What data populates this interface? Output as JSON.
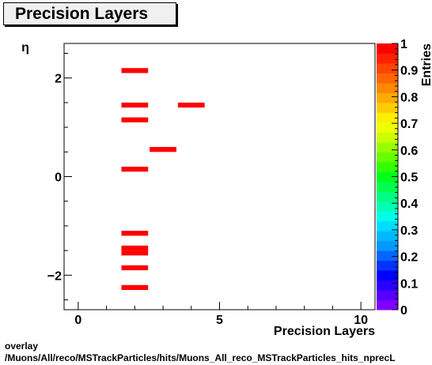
{
  "title_box": {
    "text": "Precision Layers"
  },
  "footer": {
    "line1": "overlay",
    "line2": "/Muons/All/reco/MSTrackParticles/hits/Muons_All_reco_MSTrackParticles_hits_nprecL"
  },
  "chart_data": {
    "type": "heatmap",
    "title": "Precision Layers",
    "xlabel": "Precision Layers",
    "ylabel": "η",
    "xlim": [
      -0.5,
      10.5
    ],
    "ylim": [
      -2.7,
      2.7
    ],
    "x_ticks": [
      0,
      5,
      10
    ],
    "y_ticks": [
      -2,
      0,
      2
    ],
    "zlabel": "Entries",
    "zlim": [
      0,
      1
    ],
    "z_ticks": [
      "0",
      "0.1",
      "0.2",
      "0.3",
      "0.4",
      "0.5",
      "0.6",
      "0.7",
      "0.8",
      "0.9",
      "1"
    ],
    "bin_color": "#ff0000",
    "cells": [
      {
        "x": [
          1.5,
          2.5
        ],
        "y": [
          2.1,
          2.2
        ],
        "z": 1
      },
      {
        "x": [
          1.5,
          2.5
        ],
        "y": [
          1.4,
          1.5
        ],
        "z": 1
      },
      {
        "x": [
          3.5,
          4.5
        ],
        "y": [
          1.4,
          1.5
        ],
        "z": 1
      },
      {
        "x": [
          1.5,
          2.5
        ],
        "y": [
          1.1,
          1.2
        ],
        "z": 1
      },
      {
        "x": [
          2.5,
          3.5
        ],
        "y": [
          0.5,
          0.6
        ],
        "z": 1
      },
      {
        "x": [
          1.5,
          2.5
        ],
        "y": [
          0.1,
          0.2
        ],
        "z": 1
      },
      {
        "x": [
          1.5,
          2.5
        ],
        "y": [
          -1.2,
          -1.1
        ],
        "z": 1
      },
      {
        "x": [
          1.5,
          2.5
        ],
        "y": [
          -1.5,
          -1.4
        ],
        "z": 1
      },
      {
        "x": [
          1.5,
          2.5
        ],
        "y": [
          -1.6,
          -1.5
        ],
        "z": 1
      },
      {
        "x": [
          1.5,
          2.5
        ],
        "y": [
          -1.9,
          -1.8
        ],
        "z": 1
      },
      {
        "x": [
          1.5,
          2.5
        ],
        "y": [
          -2.3,
          -2.2
        ],
        "z": 1
      }
    ],
    "palette": [
      "#7f00ff",
      "#5500ff",
      "#2a00ff",
      "#0000ff",
      "#0033ff",
      "#0066ff",
      "#0099ff",
      "#00b8ff",
      "#00ddff",
      "#00ffe6",
      "#00ffb0",
      "#00ff80",
      "#00ff4d",
      "#00ff1a",
      "#33ff00",
      "#66ff00",
      "#99ff00",
      "#ccff00",
      "#eeff00",
      "#ffee00",
      "#ffcc00",
      "#ffaa00",
      "#ff8800",
      "#ff6600",
      "#ff4400",
      "#ff2200",
      "#ff0000"
    ]
  }
}
